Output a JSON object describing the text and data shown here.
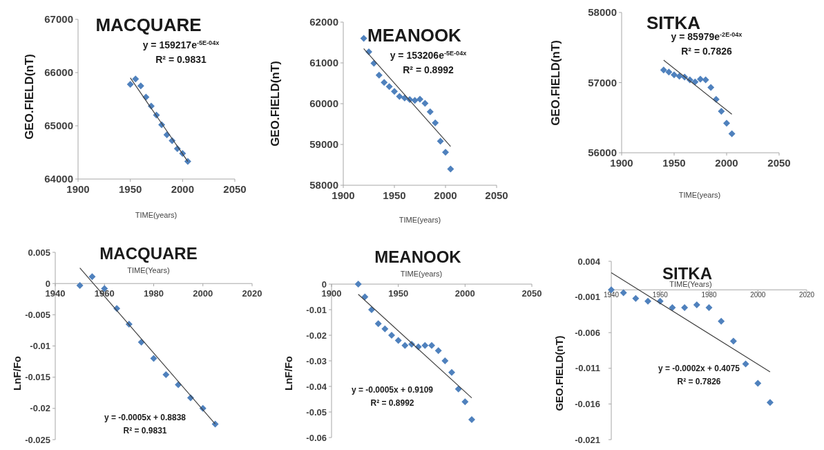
{
  "chart_data": [
    {
      "type": "scatter",
      "title": "MACQUARE",
      "xlabel": "TIME(years)",
      "ylabel": "GEO.FIELD(nT)",
      "xlim": [
        1900,
        2050
      ],
      "xticks": [
        1900,
        1950,
        2000,
        2050
      ],
      "ylim": [
        64000,
        67000
      ],
      "yticks": [
        64000,
        65000,
        66000,
        67000
      ],
      "marker": "diamond",
      "annotations": [
        "y = 159217e$^{-5E-04x}$",
        "R² = 0.9831"
      ],
      "series": [
        {
          "color": "#4f81bd",
          "x": [
            1950,
            1955,
            1960,
            1965,
            1970,
            1975,
            1980,
            1985,
            1990,
            1995,
            2000,
            2005
          ],
          "values": [
            65780,
            65880,
            65750,
            65540,
            65370,
            65200,
            65020,
            64830,
            64720,
            64570,
            64480,
            64330
          ]
        },
        {
          "type": "line",
          "color": "#404040",
          "marker": "none",
          "x": [
            1950,
            2005
          ],
          "values": [
            65900,
            64330
          ]
        }
      ]
    },
    {
      "type": "scatter",
      "title": "MEANOOK",
      "xlabel": "TIME(years)",
      "ylabel": "GEO.FIELD(nT)",
      "xlim": [
        1900,
        2050
      ],
      "xticks": [
        1900,
        1950,
        2000,
        2050
      ],
      "ylim": [
        58000,
        62000
      ],
      "yticks": [
        58000,
        59000,
        60000,
        61000,
        62000
      ],
      "marker": "diamond",
      "annotations": [
        "y = 153206e$^{-5E-04x}$",
        "R² = 0.8992"
      ],
      "series": [
        {
          "color": "#4f81bd",
          "x": [
            1920,
            1925,
            1930,
            1935,
            1940,
            1945,
            1950,
            1955,
            1960,
            1965,
            1970,
            1975,
            1980,
            1985,
            1990,
            1995,
            2000,
            2005
          ],
          "values": [
            61600,
            61270,
            60990,
            60700,
            60520,
            60420,
            60300,
            60180,
            60140,
            60100,
            60080,
            60110,
            60010,
            59800,
            59530,
            59080,
            58810,
            58400
          ]
        },
        {
          "type": "line",
          "color": "#404040",
          "marker": "none",
          "x": [
            1920,
            2005
          ],
          "values": [
            61350,
            58950
          ]
        }
      ]
    },
    {
      "type": "scatter",
      "title": "SITKA",
      "xlabel": "TIME(years)",
      "ylabel": "GEO.FIELD(nT)",
      "xlim": [
        1900,
        2050
      ],
      "xticks": [
        1900,
        1950,
        2000,
        2050
      ],
      "ylim": [
        56000,
        58000
      ],
      "yticks": [
        56000,
        57000,
        58000
      ],
      "marker": "diamond",
      "annotations": [
        "y = 85979e$^{-2E-04x}$",
        "R² = 0.7826"
      ],
      "series": [
        {
          "color": "#4f81bd",
          "x": [
            1940,
            1945,
            1950,
            1955,
            1960,
            1965,
            1970,
            1975,
            1980,
            1985,
            1990,
            1995,
            2000,
            2005
          ],
          "values": [
            57180,
            57150,
            57110,
            57090,
            57080,
            57040,
            57010,
            57050,
            57040,
            56930,
            56760,
            56590,
            56420,
            56270
          ]
        },
        {
          "type": "line",
          "color": "#404040",
          "marker": "none",
          "x": [
            1940,
            2005
          ],
          "values": [
            57320,
            56550
          ]
        }
      ]
    },
    {
      "type": "scatter",
      "title": "MACQUARE",
      "xlabel": "TIME(Years)",
      "ylabel": "LnF/Fo",
      "xlim": [
        1940,
        2020
      ],
      "xticks": [
        1940,
        1960,
        1980,
        2000,
        2020
      ],
      "ylim": [
        -0.025,
        0.005
      ],
      "yticks": [
        -0.025,
        -0.02,
        -0.015,
        -0.01,
        -0.005,
        0,
        0.005
      ],
      "marker": "diamond",
      "annotations": [
        "y = -0.0005x + 0.8838",
        "R² = 0.9831"
      ],
      "series": [
        {
          "color": "#4f81bd",
          "x": [
            1950,
            1955,
            1960,
            1965,
            1970,
            1975,
            1980,
            1985,
            1990,
            1995,
            2000,
            2005
          ],
          "values": [
            -0.0003,
            0.0011,
            -0.0008,
            -0.004,
            -0.0065,
            -0.0094,
            -0.012,
            -0.0146,
            -0.0162,
            -0.0183,
            -0.02,
            -0.0225
          ]
        },
        {
          "type": "line",
          "color": "#404040",
          "marker": "none",
          "x": [
            1950,
            2005
          ],
          "values": [
            0.0025,
            -0.0225
          ]
        }
      ]
    },
    {
      "type": "scatter",
      "title": "MEANOOK",
      "xlabel": "TIME(years)",
      "ylabel": "LnF/Fo",
      "xlim": [
        1900,
        2050
      ],
      "xticks": [
        1900,
        1950,
        2000,
        2050
      ],
      "ylim": [
        -0.06,
        0
      ],
      "yticks": [
        -0.06,
        -0.05,
        -0.04,
        -0.03,
        -0.02,
        -0.01,
        0
      ],
      "marker": "diamond",
      "annotations": [
        "y = -0.0005x + 0.9109",
        "R² = 0.8992"
      ],
      "series": [
        {
          "color": "#4f81bd",
          "x": [
            1920,
            1925,
            1930,
            1935,
            1940,
            1945,
            1950,
            1955,
            1960,
            1965,
            1970,
            1975,
            1980,
            1985,
            1990,
            1995,
            2000,
            2005
          ],
          "values": [
            0,
            -0.005,
            -0.01,
            -0.0155,
            -0.0175,
            -0.02,
            -0.022,
            -0.024,
            -0.0235,
            -0.0245,
            -0.024,
            -0.024,
            -0.026,
            -0.03,
            -0.0345,
            -0.041,
            -0.046,
            -0.053
          ]
        },
        {
          "type": "line",
          "color": "#404040",
          "marker": "none",
          "x": [
            1920,
            2005
          ],
          "values": [
            -0.004,
            -0.0445
          ]
        }
      ]
    },
    {
      "type": "scatter",
      "title": "SITKA",
      "xlabel": "TIME(Years)",
      "ylabel": "GEO.FIELD(nT)",
      "xlim": [
        1940,
        2020
      ],
      "xticks": [
        1940,
        1960,
        1980,
        2000,
        2020
      ],
      "ylim": [
        -0.021,
        0.004
      ],
      "yticks": [
        -0.021,
        -0.016,
        -0.011,
        -0.006,
        -0.001,
        0.004
      ],
      "marker": "diamond",
      "annotations": [
        "y = -0.0002x + 0.4075",
        "R² = 0.7826"
      ],
      "series": [
        {
          "color": "#4f81bd",
          "x": [
            1940,
            1945,
            1950,
            1955,
            1960,
            1965,
            1970,
            1975,
            1980,
            1985,
            1990,
            1995,
            2000,
            2005
          ],
          "values": [
            0,
            -0.0004,
            -0.0012,
            -0.0016,
            -0.0016,
            -0.0025,
            -0.0025,
            -0.0021,
            -0.0025,
            -0.0044,
            -0.0072,
            -0.0104,
            -0.0131,
            -0.0158
          ]
        },
        {
          "type": "line",
          "color": "#404040",
          "marker": "none",
          "x": [
            1940,
            2005
          ],
          "values": [
            0.0024,
            -0.0115
          ]
        }
      ]
    }
  ]
}
